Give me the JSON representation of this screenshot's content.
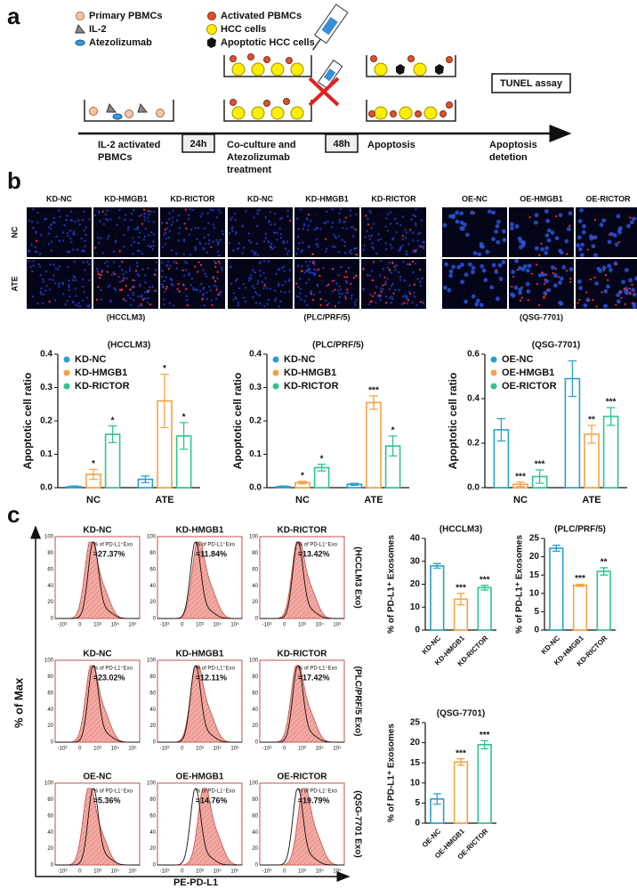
{
  "panel_a": {
    "label": "a",
    "legend": [
      "Primary PBMCs",
      "IL-2",
      "Atezolizumab",
      "Activated PBMCs",
      "HCC cells",
      "Apoptotic HCC cells"
    ],
    "assay": "TUNEL assay",
    "times": [
      "24h",
      "48h"
    ],
    "steps": [
      [
        "IL-2 activated",
        "PBMCs"
      ],
      [
        "Co-culture and",
        "Atezolizumab",
        "treatment"
      ],
      [
        "Apoptosis"
      ],
      [
        "Apoptosis",
        "detetion"
      ]
    ]
  },
  "panel_b": {
    "label": "b",
    "rows": [
      "NC",
      "ATE"
    ],
    "image_groups": [
      {
        "columns": [
          "KD-NC",
          "KD-HMGB1",
          "KD-RICTOR"
        ],
        "caption": "(HCCLM3)"
      },
      {
        "columns": [
          "KD-NC",
          "KD-HMGB1",
          "KD-RICTOR"
        ],
        "caption": "(PLC/PRF/5)"
      },
      {
        "columns": [
          "OE-NC",
          "OE-HMGB1",
          "OE-RICTOR"
        ],
        "caption": "(QSG-7701)"
      }
    ]
  },
  "panel_c": {
    "label": "c",
    "y_label": "% of Max",
    "x_label": "PE-PD-L1",
    "flow_yticks": [
      0,
      20,
      40,
      60,
      80,
      100
    ],
    "flow_xticks": [
      "-10³",
      "0",
      "10³",
      "10⁴",
      "10⁵"
    ],
    "gate_label": "% of PD-L1⁺Exo",
    "rows": [
      {
        "name": "(HCCLM3 Exo)",
        "plots": [
          {
            "title": "KD-NC",
            "value": "=27.37%"
          },
          {
            "title": "KD-HMGB1",
            "value": "=11.84%"
          },
          {
            "title": "KD-RICTOR",
            "value": "=13.42%"
          }
        ]
      },
      {
        "name": "(PLC/PRF/5 Exo)",
        "plots": [
          {
            "title": "KD-NC",
            "value": "=23.02%"
          },
          {
            "title": "KD-HMGB1",
            "value": "=12.11%"
          },
          {
            "title": "KD-RICTOR",
            "value": "=17.42%"
          }
        ]
      },
      {
        "name": "(QSG-7701 Exo)",
        "plots": [
          {
            "title": "OE-NC",
            "value": "=5.36%"
          },
          {
            "title": "OE-HMGB1",
            "value": "=14.76%"
          },
          {
            "title": "OE-RICTOR",
            "value": "=19.79%"
          }
        ]
      }
    ]
  },
  "chart_data": [
    {
      "type": "bar",
      "title": "(HCCLM3)",
      "y_label": "Apoptotic cell ratio",
      "categories": [
        "NC",
        "ATE"
      ],
      "series": [
        {
          "name": "KD-NC",
          "color": "#2a9fd0",
          "values": [
            0.003,
            0.025
          ],
          "errors": [
            0.002,
            0.01
          ]
        },
        {
          "name": "KD-HMGB1",
          "color": "#f5a243",
          "values": [
            0.04,
            0.26
          ],
          "errors": [
            0.015,
            0.08
          ],
          "significance": [
            "*",
            "*"
          ]
        },
        {
          "name": "KD-RICTOR",
          "color": "#2fc48d",
          "values": [
            0.16,
            0.155
          ],
          "errors": [
            0.025,
            0.04
          ],
          "significance": [
            "*",
            "*"
          ]
        }
      ],
      "ylim": [
        0,
        0.4
      ],
      "yticks": [
        {
          "value": 0,
          "label": "0.0"
        },
        0.1,
        0.2,
        0.3,
        0.4
      ],
      "legend": "upper left"
    },
    {
      "type": "bar",
      "title": "(PLC/PRF/5)",
      "y_label": "Apoptotic cell ratio",
      "categories": [
        "NC",
        "ATE"
      ],
      "series": [
        {
          "name": "KD-NC",
          "color": "#2a9fd0",
          "values": [
            0.003,
            0.01
          ],
          "errors": [
            0.002,
            0.003
          ]
        },
        {
          "name": "KD-HMGB1",
          "color": "#f5a243",
          "values": [
            0.015,
            0.255
          ],
          "errors": [
            0.004,
            0.02
          ],
          "significance": [
            "*",
            "***"
          ]
        },
        {
          "name": "KD-RICTOR",
          "color": "#2fc48d",
          "values": [
            0.06,
            0.125
          ],
          "errors": [
            0.01,
            0.03
          ],
          "significance": [
            "*",
            "*"
          ]
        }
      ],
      "ylim": [
        0,
        0.4
      ],
      "yticks": [
        {
          "value": 0,
          "label": "0.0"
        },
        0.1,
        0.2,
        0.3,
        0.4
      ],
      "legend": "upper left"
    },
    {
      "type": "bar",
      "title": "(QSG-7701)",
      "y_label": "Apoptotic cell ratio",
      "categories": [
        "NC",
        "ATE"
      ],
      "series": [
        {
          "name": "OE-NC",
          "color": "#2a9fd0",
          "values": [
            0.26,
            0.49
          ],
          "errors": [
            0.05,
            0.08
          ]
        },
        {
          "name": "OE-HMGB1",
          "color": "#f5a243",
          "values": [
            0.015,
            0.24
          ],
          "errors": [
            0.01,
            0.04
          ],
          "significance": [
            "***",
            "**"
          ]
        },
        {
          "name": "OE-RICTOR",
          "color": "#2fc48d",
          "values": [
            0.05,
            0.32
          ],
          "errors": [
            0.03,
            0.04
          ],
          "significance": [
            "***",
            "***"
          ]
        }
      ],
      "ylim": [
        0,
        0.6
      ],
      "yticks": [
        {
          "value": 0,
          "label": "0.0"
        },
        0.2,
        0.4,
        0.6
      ],
      "legend": "upper left"
    },
    {
      "type": "bar",
      "title": "(HCCLM3)",
      "y_label": "% of PD-L1⁺ Exosomes",
      "categories": [
        "KD-NC",
        "KD-HMGB1",
        "KD-RICTOR"
      ],
      "values": [
        28,
        13.5,
        18.5
      ],
      "errors": [
        1,
        2.5,
        1
      ],
      "colors": [
        "#2a9fd0",
        "#f5a243",
        "#2fc48d"
      ],
      "significance": [
        null,
        "***",
        "***"
      ],
      "ylim": [
        0,
        40
      ],
      "yticks": [
        0,
        10,
        20,
        30,
        40
      ]
    },
    {
      "type": "bar",
      "title": "(PLC/PRF/5)",
      "y_label": "% of PD-L1⁺ Exosomes",
      "categories": [
        "KD-NC",
        "KD-HMGB1",
        "KD-RICTOR"
      ],
      "values": [
        22.3,
        12.2,
        16
      ],
      "errors": [
        0.8,
        0.3,
        1
      ],
      "colors": [
        "#2a9fd0",
        "#f5a243",
        "#2fc48d"
      ],
      "significance": [
        null,
        "***",
        "**"
      ],
      "ylim": [
        0,
        25
      ],
      "yticks": [
        0,
        5,
        10,
        15,
        20,
        25
      ]
    },
    {
      "type": "bar",
      "title": "(QSG-7701)",
      "y_label": "% of PD-L1⁺ Exosomes",
      "categories": [
        "OE-NC",
        "OE-HMGB1",
        "OE-RICTOR"
      ],
      "values": [
        6,
        15.2,
        19.5
      ],
      "errors": [
        1.3,
        0.8,
        1
      ],
      "colors": [
        "#2a9fd0",
        "#f5a243",
        "#2fc48d"
      ],
      "significance": [
        null,
        "***",
        "***"
      ],
      "ylim": [
        0,
        25
      ],
      "yticks": [
        0,
        5,
        10,
        15,
        20,
        25
      ]
    }
  ]
}
